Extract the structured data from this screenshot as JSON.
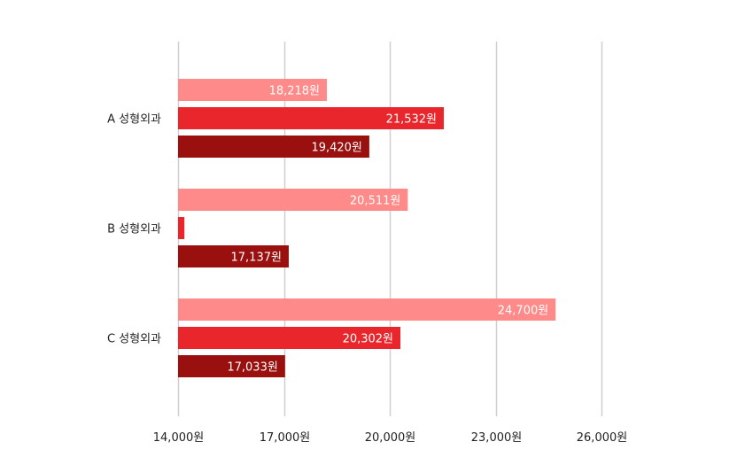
{
  "chart_data": {
    "type": "bar",
    "orientation": "horizontal",
    "categories": [
      "A 성형외과",
      "B 성형외과",
      "C 성형외과"
    ],
    "series": [
      {
        "values": [
          18218,
          20511,
          24700
        ],
        "labels": [
          "18,218원",
          "20,511원",
          "24,700원"
        ],
        "color": "#FF8A8A"
      },
      {
        "values": [
          21532,
          14180,
          20302
        ],
        "labels": [
          "21,532원",
          "",
          "20,302원"
        ],
        "color": "#E8262C"
      },
      {
        "values": [
          19420,
          17137,
          17033
        ],
        "labels": [
          "19,420원",
          "17,137원",
          "17,033원"
        ],
        "color": "#99100F"
      }
    ],
    "xlim": [
      14000,
      26000
    ],
    "x_ticks": [
      14000,
      17000,
      20000,
      23000,
      26000
    ],
    "x_tick_labels": [
      "14,000원",
      "17,000원",
      "20,000원",
      "23,000원",
      "26,000원"
    ],
    "grid": true,
    "legend": "none",
    "gridline_color": "#CFCFCF"
  }
}
